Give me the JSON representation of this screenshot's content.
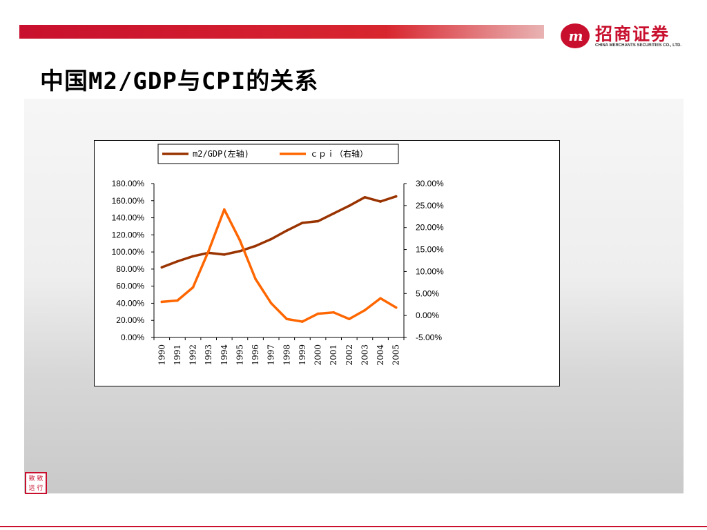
{
  "header": {
    "title": "中国M2/GDP与CPI的关系",
    "logo_cn": "招商证券",
    "logo_en": "CHINA MERCHANTS SECURITIES CO., LTD.",
    "logo_mark": "m"
  },
  "colors": {
    "brand_red": "#c8102e",
    "m2_series": "#993300",
    "cpi_series": "#ff6600"
  },
  "chart_data": {
    "type": "line",
    "title": "",
    "xlabel": "",
    "ylabel": "",
    "categories": [
      "1990",
      "1991",
      "1992",
      "1993",
      "1994",
      "1995",
      "1996",
      "1997",
      "1998",
      "1999",
      "2000",
      "2001",
      "2002",
      "2003",
      "2004",
      "2005"
    ],
    "left_axis": {
      "ylim": [
        0,
        180
      ],
      "ticks": [
        "180.00%",
        "160.00%",
        "140.00%",
        "120.00%",
        "100.00%",
        "80.00%",
        "60.00%",
        "40.00%",
        "20.00%",
        "0.00%"
      ]
    },
    "right_axis": {
      "ylim": [
        -5,
        30
      ],
      "ticks": [
        "30.00%",
        "25.00%",
        "20.00%",
        "15.00%",
        "10.00%",
        "5.00%",
        "0.00%",
        "-5.00%"
      ]
    },
    "series": [
      {
        "name": "m2/GDP(左轴)",
        "axis": "left",
        "values": [
          82,
          89,
          95,
          99,
          97,
          101,
          107,
          115,
          125,
          134,
          136,
          145,
          154,
          164,
          159,
          165
        ]
      },
      {
        "name": "ｃｐｉ（右轴）",
        "axis": "right",
        "values": [
          3.1,
          3.4,
          6.4,
          14.7,
          24.1,
          17.1,
          8.3,
          2.8,
          -0.8,
          -1.4,
          0.4,
          0.7,
          -0.8,
          1.2,
          3.9,
          1.8
        ]
      }
    ],
    "legend_position": "top",
    "grid": false
  }
}
